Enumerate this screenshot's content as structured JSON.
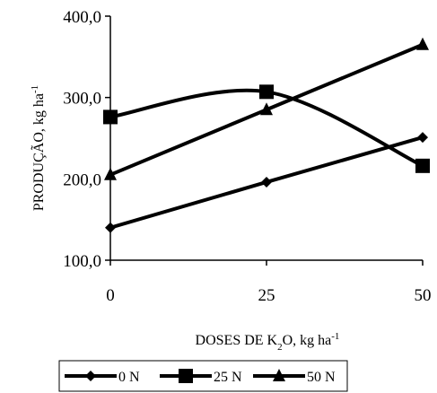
{
  "chart_data": {
    "type": "line",
    "title": "",
    "xlabel": {
      "main": "DOSES DE K",
      "sub": "2",
      "rest": "O, kg ha",
      "sup": "-1"
    },
    "ylabel": {
      "main": "PRODUÇÃO, kg ha",
      "sup": "-1"
    },
    "x": [
      0,
      25,
      50
    ],
    "x_tick_labels": [
      "0",
      "25",
      "50"
    ],
    "y_tick_labels": [
      "100,0",
      "200,0",
      "300,0",
      "400,0"
    ],
    "ylim": [
      100,
      400
    ],
    "xlim": [
      0,
      50
    ],
    "grid": false,
    "legend_position": "bottom",
    "series": [
      {
        "name": "0 N",
        "marker": "diamond",
        "values": [
          140,
          196,
          251
        ]
      },
      {
        "name": "25 N",
        "marker": "square",
        "values": [
          276,
          307,
          216
        ]
      },
      {
        "name": "50 N",
        "marker": "triangle",
        "values": [
          205,
          285,
          365
        ]
      }
    ]
  }
}
